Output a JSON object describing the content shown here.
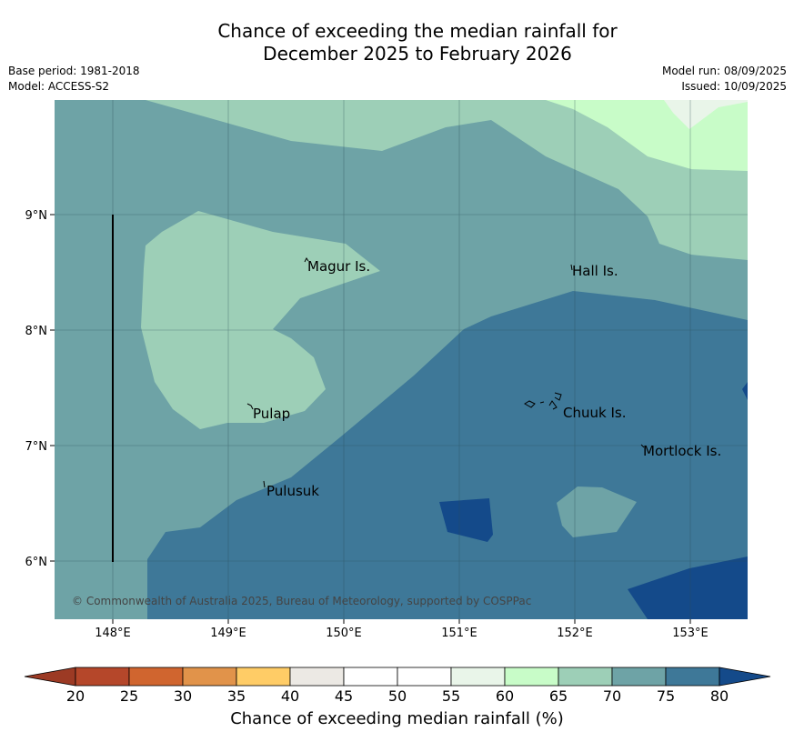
{
  "title_line1": "Chance of exceeding the median rainfall for",
  "title_line2": "December 2025 to February 2026",
  "meta_left": [
    "Base period: 1981-2018",
    "Model: ACCESS-S2"
  ],
  "meta_right": [
    "Model run: 08/09/2025",
    "Issued: 10/09/2025"
  ],
  "map": {
    "lon_ticks": [
      "148°E",
      "149°E",
      "150°E",
      "151°E",
      "152°E",
      "153°E"
    ],
    "lat_ticks": [
      "9°N",
      "8°N",
      "7°N",
      "6°N"
    ],
    "places": [
      "Magur Is.",
      "Hall Is.",
      "Pulap",
      "Chuuk Is.",
      "Mortlock Is.",
      "Pulusuk"
    ],
    "copyright": "© Commonwealth of Australia 2025, Bureau of Meteorology, supported by COSPPac"
  },
  "colorbar": {
    "ticks": [
      "20",
      "25",
      "30",
      "35",
      "40",
      "45",
      "50",
      "55",
      "60",
      "65",
      "70",
      "75",
      "80"
    ],
    "colors": [
      "#b5472a",
      "#d0652f",
      "#e1934a",
      "#ffcc66",
      "#ece9e4",
      "#ffffff",
      "#ffffff",
      "#e9f5e9",
      "#c8fcc8",
      "#9dcfb7",
      "#6ea3a6",
      "#3e7898"
    ],
    "under_color": "#9c3a24",
    "over_color": "#144a8a",
    "label": "Chance of exceeding median rainfall (%)"
  }
}
